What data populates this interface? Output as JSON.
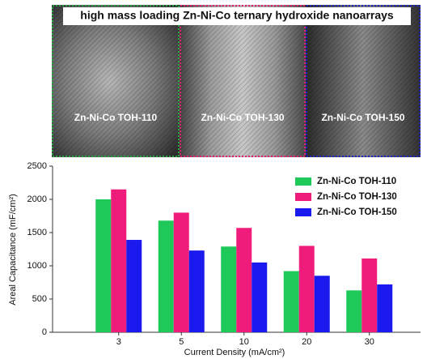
{
  "chart_data": {
    "type": "bar",
    "title": "high mass loading Zn-Ni-Co ternary hydroxide nanoarrays",
    "annotations": [
      "Zn-Ni-Co TOH-110",
      "Zn-Ni-Co TOH-130",
      "Zn-Ni-Co TOH-150"
    ],
    "x_label": "Current Density (mA/cm²)",
    "y_label": "Areal Capacitance (mF/cm²)",
    "categories": [
      "3",
      "5",
      "10",
      "20",
      "30"
    ],
    "series": [
      {
        "name": "Zn-Ni-Co TOH-110",
        "color": "#1ec95a",
        "values": [
          2000,
          1680,
          1290,
          920,
          630
        ]
      },
      {
        "name": "Zn-Ni-Co TOH-130",
        "color": "#f01c7c",
        "values": [
          2150,
          1800,
          1570,
          1300,
          1110
        ]
      },
      {
        "name": "Zn-Ni-Co TOH-150",
        "color": "#1a1aee",
        "values": [
          1390,
          1230,
          1050,
          850,
          720
        ]
      }
    ],
    "ylim": [
      0,
      2500
    ],
    "yticks": [
      0,
      500,
      1000,
      1500,
      2000,
      2500
    ],
    "legend": "top-right"
  }
}
